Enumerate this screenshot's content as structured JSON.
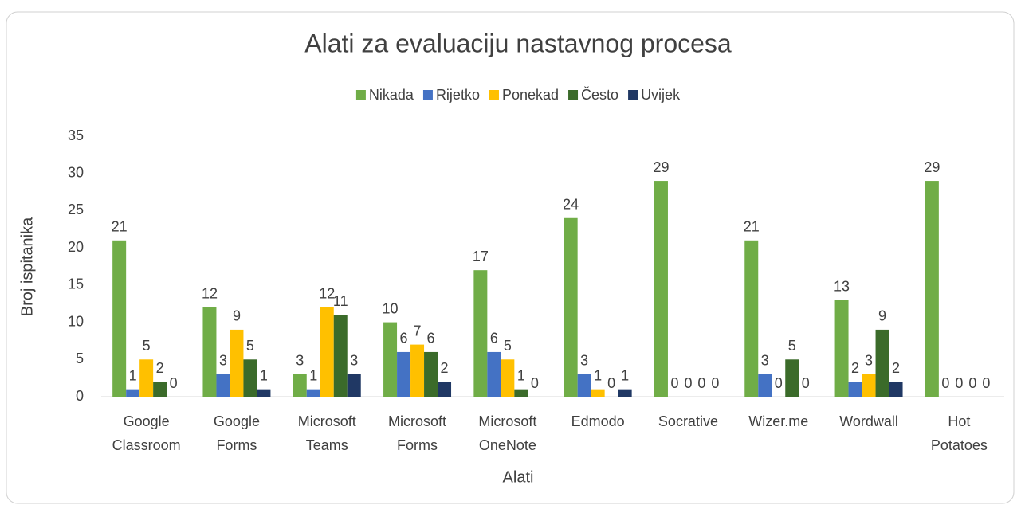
{
  "chart_data": {
    "type": "bar",
    "title": "Alati za evaluaciju nastavnog procesa",
    "x_label": "Alati",
    "y_label": "Broj ispitanika",
    "categories": [
      "Google Classroom",
      "Google Forms",
      "Microsoft Teams",
      "Microsoft Forms",
      "Microsoft OneNote",
      "Edmodo",
      "Socrative",
      "Wizer.me",
      "Wordwall",
      "Hot Potatoes"
    ],
    "series": [
      {
        "name": "Nikada",
        "color": "#70ad47",
        "values": [
          21,
          12,
          3,
          10,
          17,
          24,
          29,
          21,
          13,
          29
        ]
      },
      {
        "name": "Rijetko",
        "color": "#4472c4",
        "values": [
          1,
          3,
          1,
          6,
          6,
          3,
          0,
          3,
          2,
          0
        ]
      },
      {
        "name": "Ponekad",
        "color": "#ffc000",
        "values": [
          5,
          9,
          12,
          7,
          5,
          1,
          0,
          0,
          3,
          0
        ]
      },
      {
        "name": "Često",
        "color": "#3b6b2a",
        "values": [
          2,
          5,
          11,
          6,
          1,
          0,
          0,
          5,
          9,
          0
        ]
      },
      {
        "name": "Uvijek",
        "color": "#203864",
        "values": [
          0,
          1,
          3,
          2,
          0,
          1,
          0,
          0,
          2,
          0
        ]
      }
    ],
    "ylim": [
      0,
      35
    ],
    "yticks": [
      0,
      5,
      10,
      15,
      20,
      25,
      30,
      35
    ],
    "grid": false,
    "legend": "top"
  }
}
